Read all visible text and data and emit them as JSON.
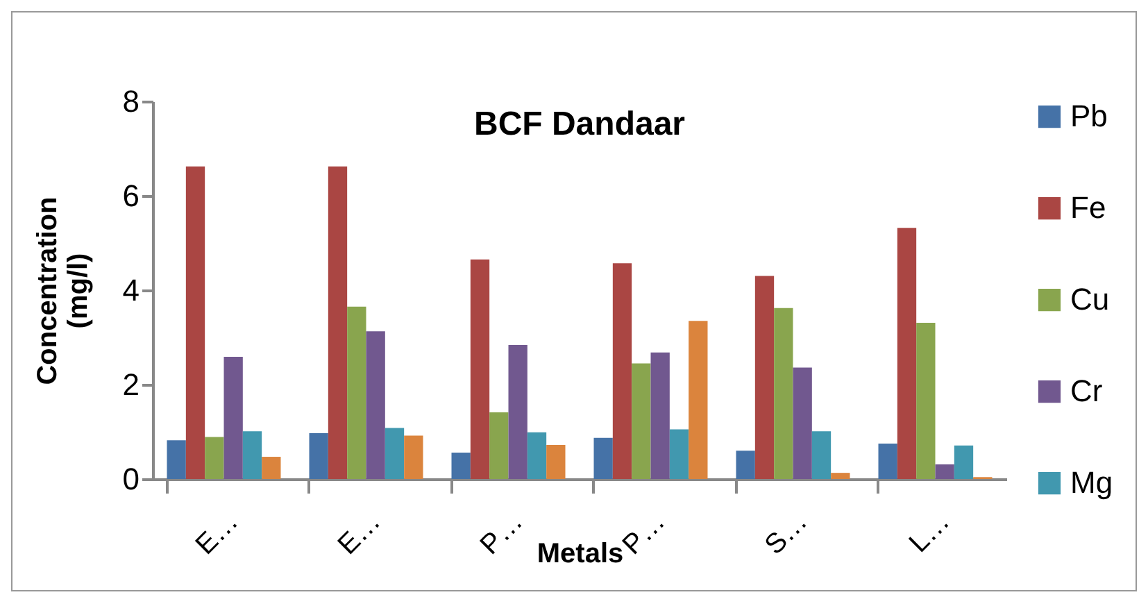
{
  "chart_data": {
    "type": "bar",
    "title": "BCF Dandaar",
    "xlabel": "Metals",
    "ylabel": "Concentration (mg/l)",
    "categories": [
      "E…",
      "E…",
      "P…",
      "P…",
      "S…",
      "L…"
    ],
    "ylim": [
      0,
      8
    ],
    "yticks": [
      0,
      2,
      4,
      6,
      8
    ],
    "grid": false,
    "legend": "right",
    "series": [
      {
        "name": "Pb",
        "color": "#4572a7",
        "values": [
          0.82,
          0.97,
          0.56,
          0.87,
          0.6,
          0.75
        ]
      },
      {
        "name": "Fe",
        "color": "#aa4643",
        "values": [
          6.62,
          6.62,
          4.65,
          4.57,
          4.3,
          5.32
        ]
      },
      {
        "name": "Cu",
        "color": "#89a54e",
        "values": [
          0.89,
          3.65,
          1.41,
          2.45,
          3.62,
          3.31
        ]
      },
      {
        "name": "Cr",
        "color": "#71588f",
        "values": [
          2.59,
          3.13,
          2.84,
          2.68,
          2.36,
          0.31
        ]
      },
      {
        "name": "Mg",
        "color": "#4198af",
        "values": [
          1.01,
          1.08,
          0.99,
          1.05,
          1.01,
          0.71
        ]
      },
      {
        "color": "#db843d",
        "values": [
          0.47,
          0.92,
          0.72,
          3.35,
          0.13,
          0.04
        ]
      }
    ]
  }
}
